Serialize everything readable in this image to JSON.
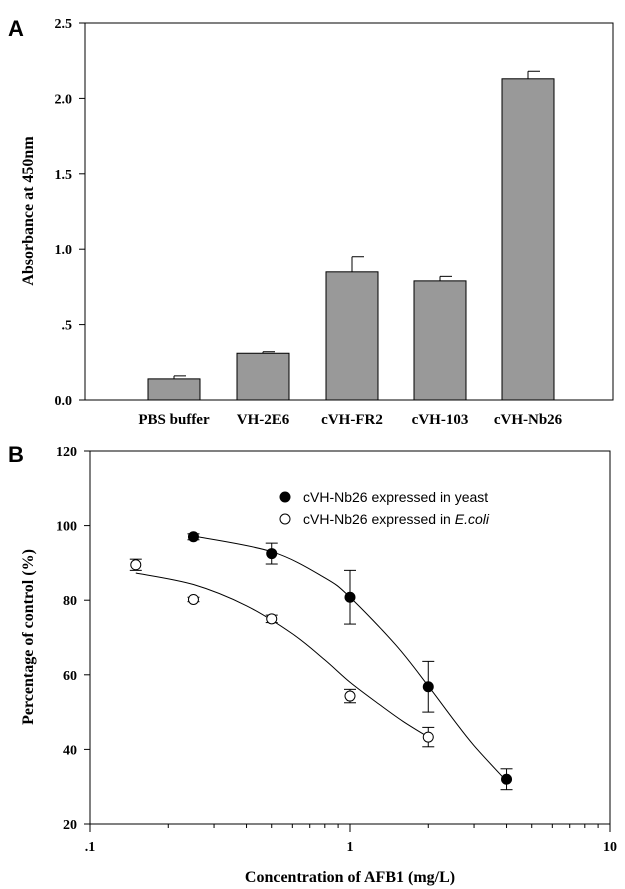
{
  "chart_data": [
    {
      "panel_label": "A",
      "type": "bar",
      "categories": [
        "PBS buffer",
        "VH-2E6",
        "cVH-FR2",
        "cVH-103",
        "cVH-Nb26"
      ],
      "values": [
        0.14,
        0.31,
        0.85,
        0.79,
        2.13
      ],
      "errors": [
        0.02,
        0.01,
        0.1,
        0.03,
        0.05
      ],
      "ylabel": "Absorbance at 450nm",
      "ylim": [
        0,
        2.5
      ],
      "yticks": [
        "0.0",
        ".5",
        "1.0",
        "1.5",
        "2.0",
        "2.5"
      ],
      "ytick_values": [
        0,
        0.5,
        1.0,
        1.5,
        2.0,
        2.5
      ],
      "bar_color": "#999999",
      "grid": false
    },
    {
      "panel_label": "B",
      "type": "scatter",
      "xscale": "log",
      "xlim": [
        0.1,
        10
      ],
      "ylim": [
        20,
        120
      ],
      "xticks": [
        ".1",
        "1",
        "10"
      ],
      "xtick_values": [
        0.1,
        1,
        10
      ],
      "yticks": [
        "20",
        "40",
        "60",
        "80",
        "100",
        "120"
      ],
      "ytick_values": [
        20,
        40,
        60,
        80,
        100,
        120
      ],
      "xlabel": "Concentration of AFB1 (mg/L)",
      "ylabel": "Percentage of control (%)",
      "legend_position": "top-right",
      "grid": false,
      "series": [
        {
          "name": "cVH-Nb26 expressed in yeast",
          "marker": "filled-circle",
          "x": [
            0.25,
            0.5,
            1,
            2,
            4
          ],
          "y": [
            97,
            92.5,
            80.8,
            56.8,
            32
          ],
          "errors": [
            0.8,
            2.8,
            7.2,
            6.8,
            2.8
          ],
          "fit": [
            [
              0.25,
              97.2
            ],
            [
              0.5,
              93
            ],
            [
              0.8,
              86
            ],
            [
              1,
              80.8
            ],
            [
              1.5,
              68
            ],
            [
              2,
              57
            ],
            [
              2.5,
              48
            ],
            [
              3,
              41
            ],
            [
              4,
              31.5
            ]
          ]
        },
        {
          "name": "cVH-Nb26 expressed in ",
          "name_italic": "E.coli",
          "marker": "open-circle",
          "x": [
            0.15,
            0.25,
            0.5,
            1,
            2
          ],
          "y": [
            89.5,
            80.2,
            75,
            54.3,
            43.3
          ],
          "errors": [
            1.5,
            0.6,
            1.0,
            1.8,
            2.6
          ],
          "fit": [
            [
              0.15,
              87.3
            ],
            [
              0.25,
              84.2
            ],
            [
              0.4,
              78.5
            ],
            [
              0.6,
              71
            ],
            [
              0.8,
              64
            ],
            [
              1,
              58
            ],
            [
              1.3,
              52
            ],
            [
              1.6,
              47.5
            ],
            [
              2,
              43.3
            ]
          ]
        }
      ]
    }
  ]
}
